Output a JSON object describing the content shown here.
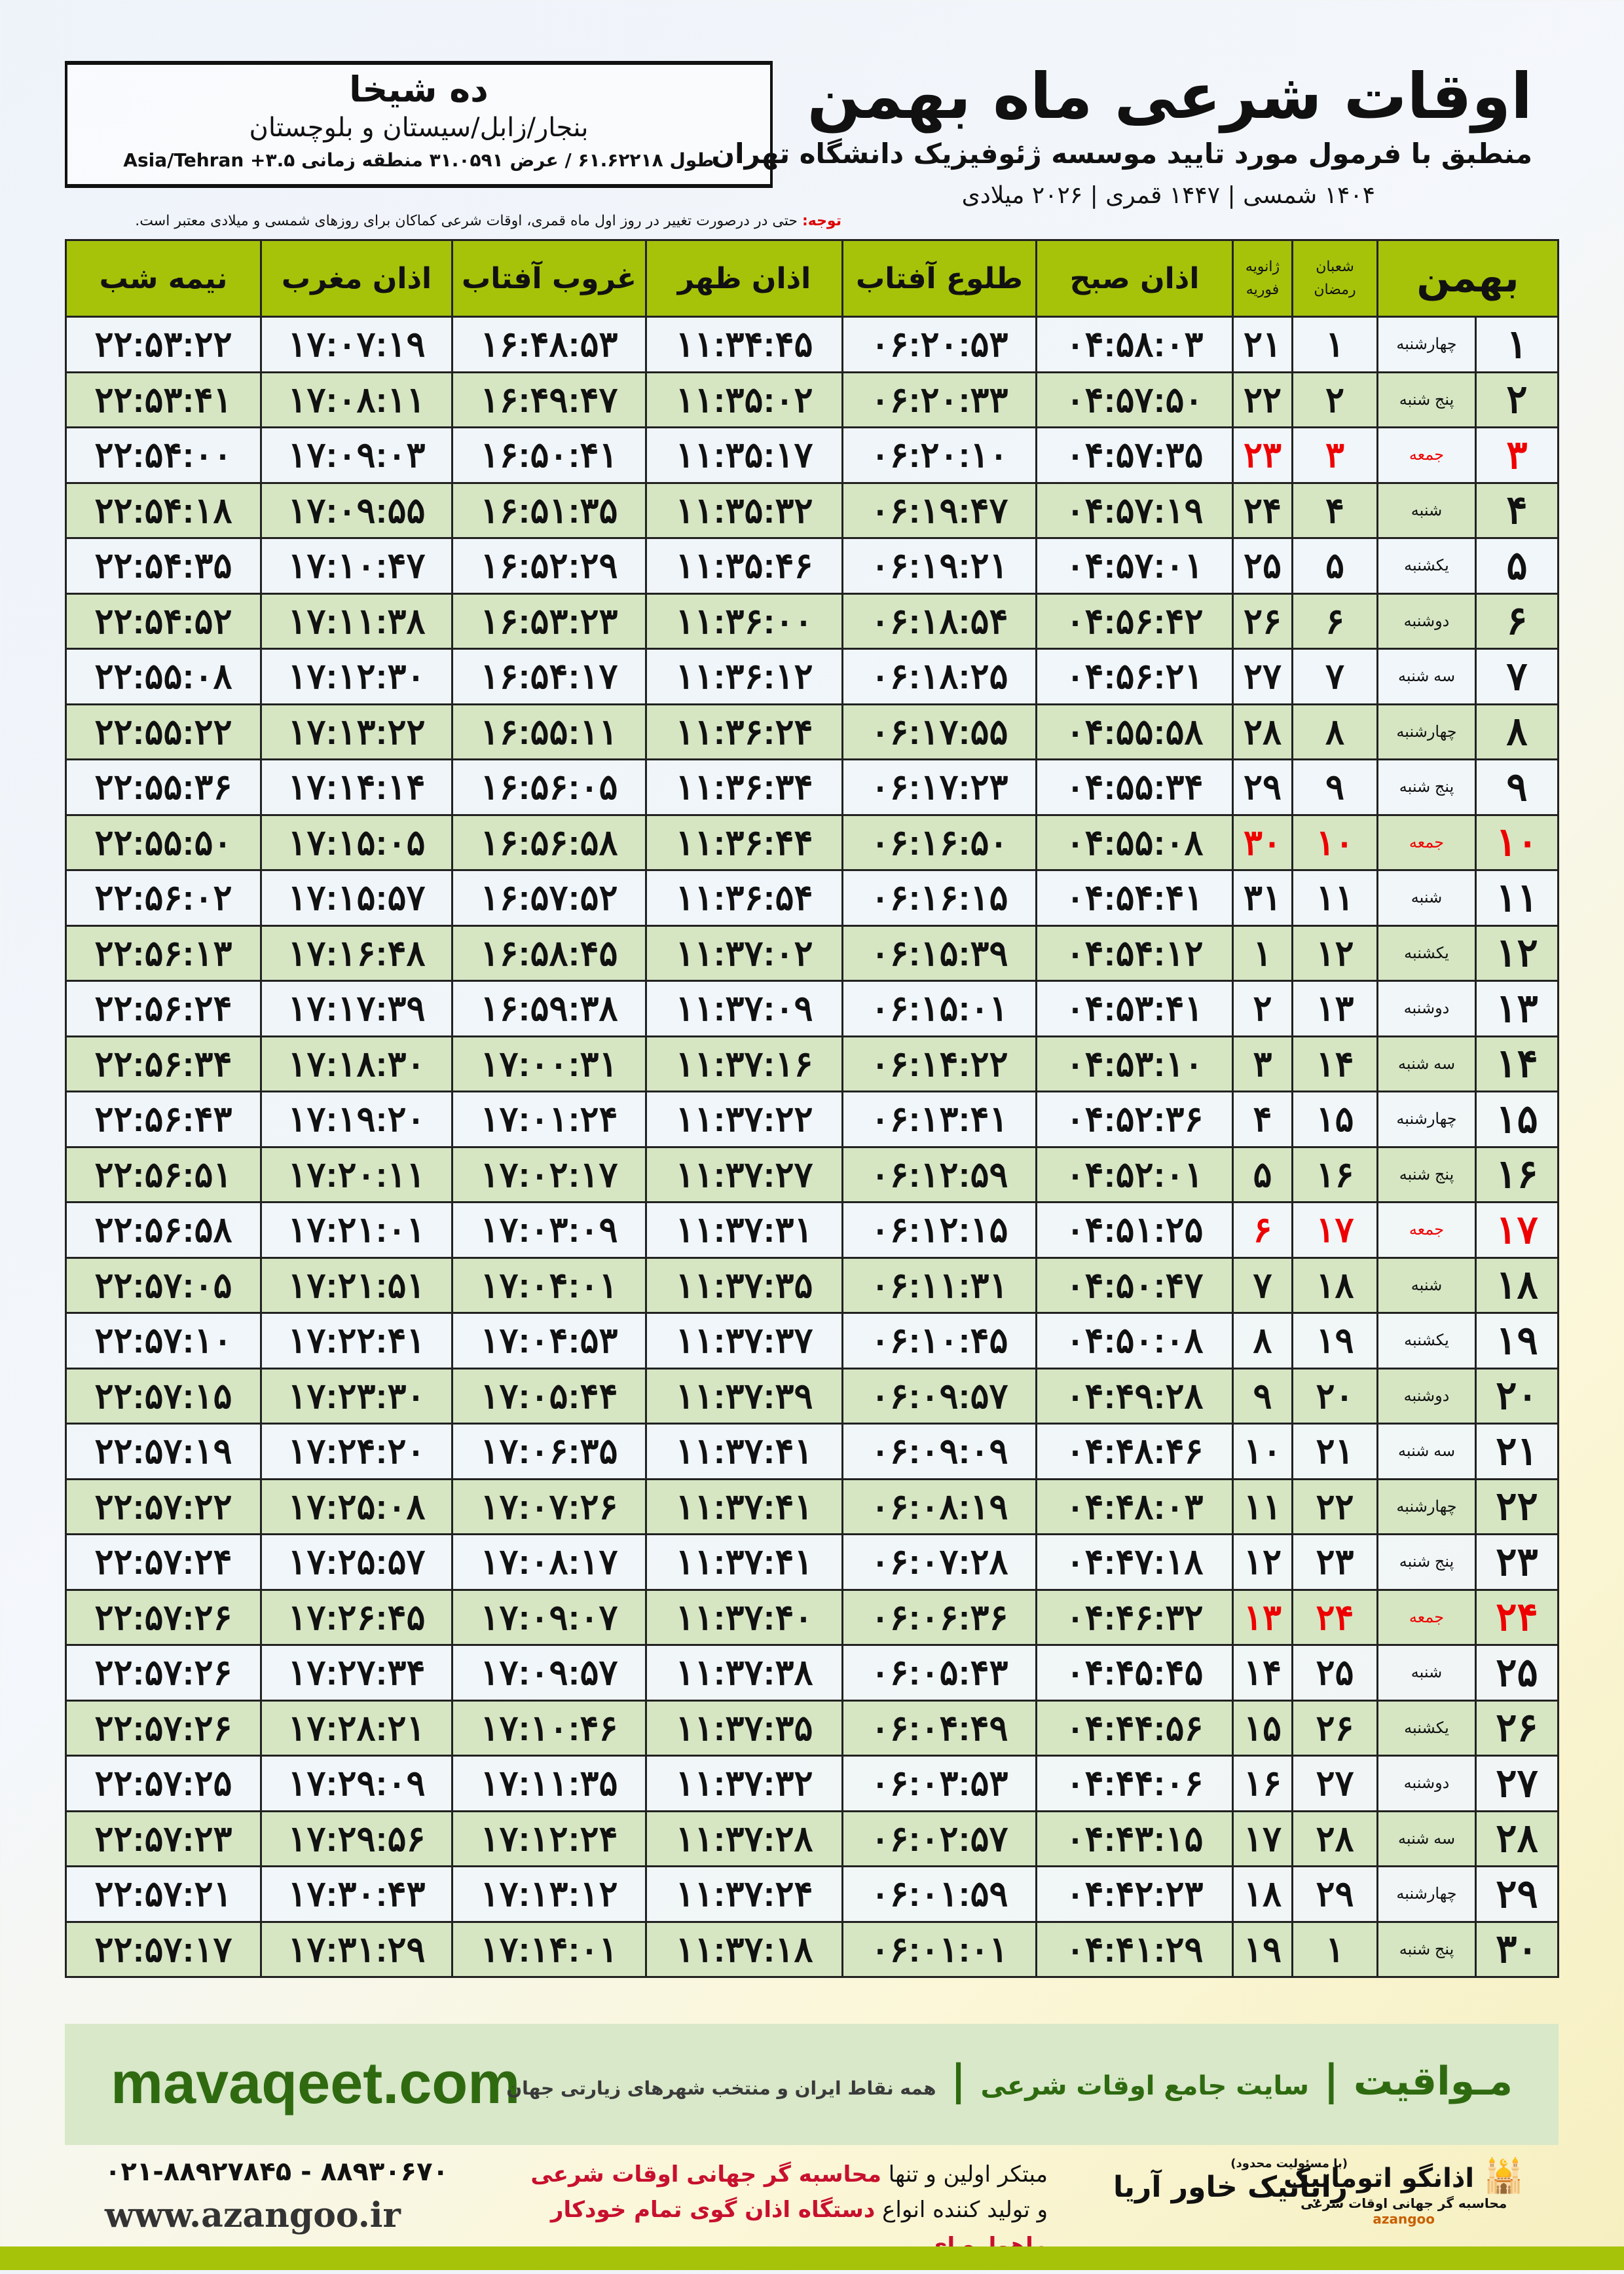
{
  "location": {
    "name": "ده شیخا",
    "province": "بنجار/زابل/سیستان و بلوچستان",
    "coords": "طول ۶۱.۶۲۲۱۸ / عرض ۳۱.۰۵۹۱ منطقه زمانی Asia/Tehran +۳.۵"
  },
  "header": {
    "title": "اوقات شرعی ماه بهمن",
    "subtitle": "منطبق با فرمول مورد تایید موسسه ژئوفیزیک دانشگاه تهران",
    "dates": "۱۴۰۴ شمسی | ۱۴۴۷ قمری | ۲۰۲۶ میلادی"
  },
  "note": {
    "label": "توجه:",
    "text": " حتی در درصورت تغییر در روز اول ماه قمری، اوقات شرعی کماکان برای روزهای شمسی و میلادی معتبر است."
  },
  "table": {
    "headers": {
      "month": "بهمن",
      "hijri_top": "شعبان",
      "hijri_bottom": "رمضان",
      "greg_top": "ژانویه",
      "greg_bottom": "فوریه",
      "fajr": "اذان صبح",
      "sunrise": "طلوع آفتاب",
      "dhuhr": "اذان ظهر",
      "sunset": "غروب آفتاب",
      "maghrib": "اذان مغرب",
      "midnight": "نیمه شب"
    },
    "rows": [
      {
        "day": "۱",
        "weekday": "چهارشنبه",
        "hijri": "۱",
        "greg": "۲۱",
        "fajr": "۰۴:۵۸:۰۳",
        "sunrise": "۰۶:۲۰:۵۳",
        "dhuhr": "۱۱:۳۴:۴۵",
        "sunset": "۱۶:۴۸:۵۳",
        "maghrib": "۱۷:۰۷:۱۹",
        "midnight": "۲۲:۵۳:۲۲",
        "holiday": false
      },
      {
        "day": "۲",
        "weekday": "پنج شنبه",
        "hijri": "۲",
        "greg": "۲۲",
        "fajr": "۰۴:۵۷:۵۰",
        "sunrise": "۰۶:۲۰:۳۳",
        "dhuhr": "۱۱:۳۵:۰۲",
        "sunset": "۱۶:۴۹:۴۷",
        "maghrib": "۱۷:۰۸:۱۱",
        "midnight": "۲۲:۵۳:۴۱",
        "holiday": false
      },
      {
        "day": "۳",
        "weekday": "جمعه",
        "hijri": "۳",
        "greg": "۲۳",
        "fajr": "۰۴:۵۷:۳۵",
        "sunrise": "۰۶:۲۰:۱۰",
        "dhuhr": "۱۱:۳۵:۱۷",
        "sunset": "۱۶:۵۰:۴۱",
        "maghrib": "۱۷:۰۹:۰۳",
        "midnight": "۲۲:۵۴:۰۰",
        "holiday": true
      },
      {
        "day": "۴",
        "weekday": "شنبه",
        "hijri": "۴",
        "greg": "۲۴",
        "fajr": "۰۴:۵۷:۱۹",
        "sunrise": "۰۶:۱۹:۴۷",
        "dhuhr": "۱۱:۳۵:۳۲",
        "sunset": "۱۶:۵۱:۳۵",
        "maghrib": "۱۷:۰۹:۵۵",
        "midnight": "۲۲:۵۴:۱۸",
        "holiday": false
      },
      {
        "day": "۵",
        "weekday": "یکشنبه",
        "hijri": "۵",
        "greg": "۲۵",
        "fajr": "۰۴:۵۷:۰۱",
        "sunrise": "۰۶:۱۹:۲۱",
        "dhuhr": "۱۱:۳۵:۴۶",
        "sunset": "۱۶:۵۲:۲۹",
        "maghrib": "۱۷:۱۰:۴۷",
        "midnight": "۲۲:۵۴:۳۵",
        "holiday": false
      },
      {
        "day": "۶",
        "weekday": "دوشنبه",
        "hijri": "۶",
        "greg": "۲۶",
        "fajr": "۰۴:۵۶:۴۲",
        "sunrise": "۰۶:۱۸:۵۴",
        "dhuhr": "۱۱:۳۶:۰۰",
        "sunset": "۱۶:۵۳:۲۳",
        "maghrib": "۱۷:۱۱:۳۸",
        "midnight": "۲۲:۵۴:۵۲",
        "holiday": false
      },
      {
        "day": "۷",
        "weekday": "سه شنبه",
        "hijri": "۷",
        "greg": "۲۷",
        "fajr": "۰۴:۵۶:۲۱",
        "sunrise": "۰۶:۱۸:۲۵",
        "dhuhr": "۱۱:۳۶:۱۲",
        "sunset": "۱۶:۵۴:۱۷",
        "maghrib": "۱۷:۱۲:۳۰",
        "midnight": "۲۲:۵۵:۰۸",
        "holiday": false
      },
      {
        "day": "۸",
        "weekday": "چهارشنبه",
        "hijri": "۸",
        "greg": "۲۸",
        "fajr": "۰۴:۵۵:۵۸",
        "sunrise": "۰۶:۱۷:۵۵",
        "dhuhr": "۱۱:۳۶:۲۴",
        "sunset": "۱۶:۵۵:۱۱",
        "maghrib": "۱۷:۱۳:۲۲",
        "midnight": "۲۲:۵۵:۲۲",
        "holiday": false
      },
      {
        "day": "۹",
        "weekday": "پنج شنبه",
        "hijri": "۹",
        "greg": "۲۹",
        "fajr": "۰۴:۵۵:۳۴",
        "sunrise": "۰۶:۱۷:۲۳",
        "dhuhr": "۱۱:۳۶:۳۴",
        "sunset": "۱۶:۵۶:۰۵",
        "maghrib": "۱۷:۱۴:۱۴",
        "midnight": "۲۲:۵۵:۳۶",
        "holiday": false
      },
      {
        "day": "۱۰",
        "weekday": "جمعه",
        "hijri": "۱۰",
        "greg": "۳۰",
        "fajr": "۰۴:۵۵:۰۸",
        "sunrise": "۰۶:۱۶:۵۰",
        "dhuhr": "۱۱:۳۶:۴۴",
        "sunset": "۱۶:۵۶:۵۸",
        "maghrib": "۱۷:۱۵:۰۵",
        "midnight": "۲۲:۵۵:۵۰",
        "holiday": true
      },
      {
        "day": "۱۱",
        "weekday": "شنبه",
        "hijri": "۱۱",
        "greg": "۳۱",
        "fajr": "۰۴:۵۴:۴۱",
        "sunrise": "۰۶:۱۶:۱۵",
        "dhuhr": "۱۱:۳۶:۵۴",
        "sunset": "۱۶:۵۷:۵۲",
        "maghrib": "۱۷:۱۵:۵۷",
        "midnight": "۲۲:۵۶:۰۲",
        "holiday": false
      },
      {
        "day": "۱۲",
        "weekday": "یکشنبه",
        "hijri": "۱۲",
        "greg": "۱",
        "fajr": "۰۴:۵۴:۱۲",
        "sunrise": "۰۶:۱۵:۳۹",
        "dhuhr": "۱۱:۳۷:۰۲",
        "sunset": "۱۶:۵۸:۴۵",
        "maghrib": "۱۷:۱۶:۴۸",
        "midnight": "۲۲:۵۶:۱۳",
        "holiday": false
      },
      {
        "day": "۱۳",
        "weekday": "دوشنبه",
        "hijri": "۱۳",
        "greg": "۲",
        "fajr": "۰۴:۵۳:۴۱",
        "sunrise": "۰۶:۱۵:۰۱",
        "dhuhr": "۱۱:۳۷:۰۹",
        "sunset": "۱۶:۵۹:۳۸",
        "maghrib": "۱۷:۱۷:۳۹",
        "midnight": "۲۲:۵۶:۲۴",
        "holiday": false
      },
      {
        "day": "۱۴",
        "weekday": "سه شنبه",
        "hijri": "۱۴",
        "greg": "۳",
        "fajr": "۰۴:۵۳:۱۰",
        "sunrise": "۰۶:۱۴:۲۲",
        "dhuhr": "۱۱:۳۷:۱۶",
        "sunset": "۱۷:۰۰:۳۱",
        "maghrib": "۱۷:۱۸:۳۰",
        "midnight": "۲۲:۵۶:۳۴",
        "holiday": false
      },
      {
        "day": "۱۵",
        "weekday": "چهارشنبه",
        "hijri": "۱۵",
        "greg": "۴",
        "fajr": "۰۴:۵۲:۳۶",
        "sunrise": "۰۶:۱۳:۴۱",
        "dhuhr": "۱۱:۳۷:۲۲",
        "sunset": "۱۷:۰۱:۲۴",
        "maghrib": "۱۷:۱۹:۲۰",
        "midnight": "۲۲:۵۶:۴۳",
        "holiday": false
      },
      {
        "day": "۱۶",
        "weekday": "پنج شنبه",
        "hijri": "۱۶",
        "greg": "۵",
        "fajr": "۰۴:۵۲:۰۱",
        "sunrise": "۰۶:۱۲:۵۹",
        "dhuhr": "۱۱:۳۷:۲۷",
        "sunset": "۱۷:۰۲:۱۷",
        "maghrib": "۱۷:۲۰:۱۱",
        "midnight": "۲۲:۵۶:۵۱",
        "holiday": false
      },
      {
        "day": "۱۷",
        "weekday": "جمعه",
        "hijri": "۱۷",
        "greg": "۶",
        "fajr": "۰۴:۵۱:۲۵",
        "sunrise": "۰۶:۱۲:۱۵",
        "dhuhr": "۱۱:۳۷:۳۱",
        "sunset": "۱۷:۰۳:۰۹",
        "maghrib": "۱۷:۲۱:۰۱",
        "midnight": "۲۲:۵۶:۵۸",
        "holiday": true
      },
      {
        "day": "۱۸",
        "weekday": "شنبه",
        "hijri": "۱۸",
        "greg": "۷",
        "fajr": "۰۴:۵۰:۴۷",
        "sunrise": "۰۶:۱۱:۳۱",
        "dhuhr": "۱۱:۳۷:۳۵",
        "sunset": "۱۷:۰۴:۰۱",
        "maghrib": "۱۷:۲۱:۵۱",
        "midnight": "۲۲:۵۷:۰۵",
        "holiday": false
      },
      {
        "day": "۱۹",
        "weekday": "یکشنبه",
        "hijri": "۱۹",
        "greg": "۸",
        "fajr": "۰۴:۵۰:۰۸",
        "sunrise": "۰۶:۱۰:۴۵",
        "dhuhr": "۱۱:۳۷:۳۷",
        "sunset": "۱۷:۰۴:۵۳",
        "maghrib": "۱۷:۲۲:۴۱",
        "midnight": "۲۲:۵۷:۱۰",
        "holiday": false
      },
      {
        "day": "۲۰",
        "weekday": "دوشنبه",
        "hijri": "۲۰",
        "greg": "۹",
        "fajr": "۰۴:۴۹:۲۸",
        "sunrise": "۰۶:۰۹:۵۷",
        "dhuhr": "۱۱:۳۷:۳۹",
        "sunset": "۱۷:۰۵:۴۴",
        "maghrib": "۱۷:۲۳:۳۰",
        "midnight": "۲۲:۵۷:۱۵",
        "holiday": false
      },
      {
        "day": "۲۱",
        "weekday": "سه شنبه",
        "hijri": "۲۱",
        "greg": "۱۰",
        "fajr": "۰۴:۴۸:۴۶",
        "sunrise": "۰۶:۰۹:۰۹",
        "dhuhr": "۱۱:۳۷:۴۱",
        "sunset": "۱۷:۰۶:۳۵",
        "maghrib": "۱۷:۲۴:۲۰",
        "midnight": "۲۲:۵۷:۱۹",
        "holiday": false
      },
      {
        "day": "۲۲",
        "weekday": "چهارشنبه",
        "hijri": "۲۲",
        "greg": "۱۱",
        "fajr": "۰۴:۴۸:۰۳",
        "sunrise": "۰۶:۰۸:۱۹",
        "dhuhr": "۱۱:۳۷:۴۱",
        "sunset": "۱۷:۰۷:۲۶",
        "maghrib": "۱۷:۲۵:۰۸",
        "midnight": "۲۲:۵۷:۲۲",
        "holiday": false
      },
      {
        "day": "۲۳",
        "weekday": "پنج شنبه",
        "hijri": "۲۳",
        "greg": "۱۲",
        "fajr": "۰۴:۴۷:۱۸",
        "sunrise": "۰۶:۰۷:۲۸",
        "dhuhr": "۱۱:۳۷:۴۱",
        "sunset": "۱۷:۰۸:۱۷",
        "maghrib": "۱۷:۲۵:۵۷",
        "midnight": "۲۲:۵۷:۲۴",
        "holiday": false
      },
      {
        "day": "۲۴",
        "weekday": "جمعه",
        "hijri": "۲۴",
        "greg": "۱۳",
        "fajr": "۰۴:۴۶:۳۲",
        "sunrise": "۰۶:۰۶:۳۶",
        "dhuhr": "۱۱:۳۷:۴۰",
        "sunset": "۱۷:۰۹:۰۷",
        "maghrib": "۱۷:۲۶:۴۵",
        "midnight": "۲۲:۵۷:۲۶",
        "holiday": true
      },
      {
        "day": "۲۵",
        "weekday": "شنبه",
        "hijri": "۲۵",
        "greg": "۱۴",
        "fajr": "۰۴:۴۵:۴۵",
        "sunrise": "۰۶:۰۵:۴۳",
        "dhuhr": "۱۱:۳۷:۳۸",
        "sunset": "۱۷:۰۹:۵۷",
        "maghrib": "۱۷:۲۷:۳۴",
        "midnight": "۲۲:۵۷:۲۶",
        "holiday": false
      },
      {
        "day": "۲۶",
        "weekday": "یکشنبه",
        "hijri": "۲۶",
        "greg": "۱۵",
        "fajr": "۰۴:۴۴:۵۶",
        "sunrise": "۰۶:۰۴:۴۹",
        "dhuhr": "۱۱:۳۷:۳۵",
        "sunset": "۱۷:۱۰:۴۶",
        "maghrib": "۱۷:۲۸:۲۱",
        "midnight": "۲۲:۵۷:۲۶",
        "holiday": false
      },
      {
        "day": "۲۷",
        "weekday": "دوشنبه",
        "hijri": "۲۷",
        "greg": "۱۶",
        "fajr": "۰۴:۴۴:۰۶",
        "sunrise": "۰۶:۰۳:۵۳",
        "dhuhr": "۱۱:۳۷:۳۲",
        "sunset": "۱۷:۱۱:۳۵",
        "maghrib": "۱۷:۲۹:۰۹",
        "midnight": "۲۲:۵۷:۲۵",
        "holiday": false
      },
      {
        "day": "۲۸",
        "weekday": "سه شنبه",
        "hijri": "۲۸",
        "greg": "۱۷",
        "fajr": "۰۴:۴۳:۱۵",
        "sunrise": "۰۶:۰۲:۵۷",
        "dhuhr": "۱۱:۳۷:۲۸",
        "sunset": "۱۷:۱۲:۲۴",
        "maghrib": "۱۷:۲۹:۵۶",
        "midnight": "۲۲:۵۷:۲۳",
        "holiday": false
      },
      {
        "day": "۲۹",
        "weekday": "چهارشنبه",
        "hijri": "۲۹",
        "greg": "۱۸",
        "fajr": "۰۴:۴۲:۲۳",
        "sunrise": "۰۶:۰۱:۵۹",
        "dhuhr": "۱۱:۳۷:۲۴",
        "sunset": "۱۷:۱۳:۱۲",
        "maghrib": "۱۷:۳۰:۴۳",
        "midnight": "۲۲:۵۷:۲۱",
        "holiday": false
      },
      {
        "day": "۳۰",
        "weekday": "پنج شنبه",
        "hijri": "۱",
        "greg": "۱۹",
        "fajr": "۰۴:۴۱:۲۹",
        "sunrise": "۰۶:۰۱:۰۱",
        "dhuhr": "۱۱:۳۷:۱۸",
        "sunset": "۱۷:۱۴:۰۱",
        "maghrib": "۱۷:۳۱:۲۹",
        "midnight": "۲۲:۵۷:۱۷",
        "holiday": false
      }
    ]
  },
  "banner": {
    "brand": "مـواقیت",
    "tagline": "سایت جامع اوقات شرعی",
    "sub": "همه نقاط ایران و منتخب شهرهای زیارتی جهان",
    "site": "mavaqeet.com"
  },
  "footer": {
    "phone": "۰۲۱-۸۸۹۲۷۸۴۵ - ۸۸۹۳۰۶۷۰",
    "web": "www.azangoo.ir",
    "promo1a": "مبتکر اولین و تنها ",
    "promo1b": "محاسبه گر جهانی اوقات شرعی",
    "promo2a": "و تولید کننده انواع ",
    "promo2b": "دستگاه اذان گوی تمام خودکار ماهواره ای",
    "logo_rayanik": "رایانیک خاور آریا",
    "logo_rayanik_note": "(با مسئولیت محدود)",
    "logo_azangoo": "اذانگو اتوماتیک",
    "logo_azangoo_sub": "محاسبه گر جهانی اوقات شرعی",
    "logo_azangoo_en": "azangoo"
  },
  "colors": {
    "header_green": "#a6c30a",
    "row_green": "#d6e6c3",
    "banner_green": "#d8e8c8",
    "brand_text": "#2f6a10",
    "holiday_red": "#e00000"
  }
}
